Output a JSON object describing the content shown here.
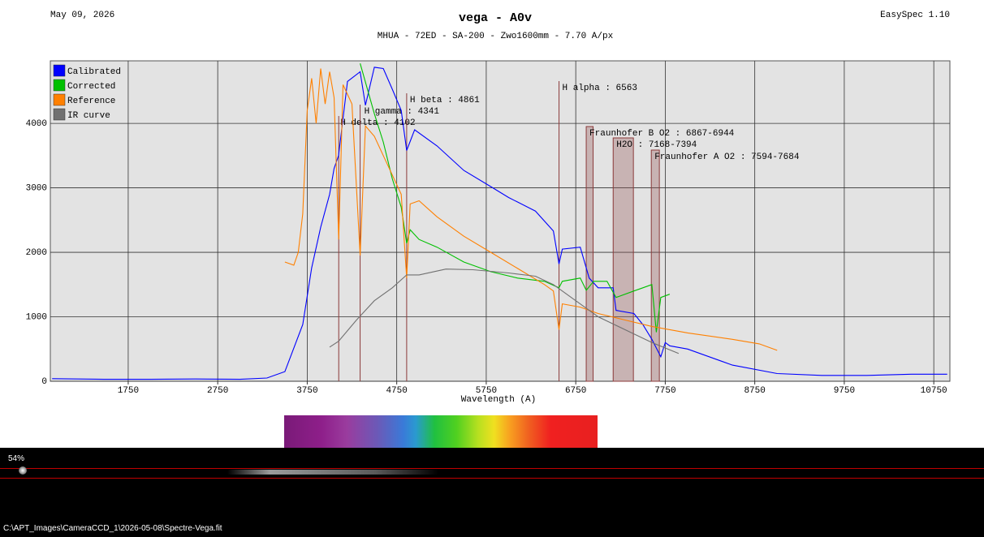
{
  "chart_data": {
    "type": "line",
    "date": "May 09, 2026",
    "title": "vega - A0v",
    "subtitle": "MHUA - 72ED - SA-200 - Zwo1600mm - 7.70 A/px",
    "software": "EasySpec 1.10",
    "x_label": "Wavelength (A)",
    "xlim": [
      880,
      10930
    ],
    "ylim": [
      0,
      4970
    ],
    "xticks": [
      1750,
      2750,
      3750,
      4750,
      5750,
      6750,
      7750,
      8750,
      9750,
      10750
    ],
    "yticks": [
      0,
      1000,
      2000,
      3000,
      4000
    ],
    "grid": true,
    "legend": "top-left",
    "series": [
      {
        "name": "Calibrated",
        "color": "#0000ff",
        "x": [
          900,
          1500,
          2000,
          2500,
          3000,
          3300,
          3500,
          3700,
          3800,
          3900,
          4000,
          4050,
          4100,
          4200,
          4341,
          4400,
          4500,
          4600,
          4700,
          4800,
          4861,
          4950,
          5200,
          5500,
          5800,
          6000,
          6300,
          6500,
          6563,
          6600,
          6800,
          6900,
          7000,
          7168,
          7200,
          7400,
          7500,
          7600,
          7700,
          7750,
          7800,
          8000,
          8500,
          9000,
          9500,
          10000,
          10500,
          10900
        ],
        "values": [
          40,
          30,
          30,
          35,
          30,
          50,
          150,
          880,
          1760,
          2390,
          2900,
          3300,
          3500,
          4650,
          4800,
          4280,
          4870,
          4850,
          4530,
          4200,
          3580,
          3900,
          3650,
          3270,
          3020,
          2850,
          2640,
          2330,
          1820,
          2050,
          2080,
          1600,
          1450,
          1450,
          1100,
          1050,
          880,
          650,
          380,
          600,
          550,
          500,
          250,
          120,
          90,
          90,
          110,
          110
        ]
      },
      {
        "name": "Corrected",
        "color": "#00c000",
        "x": [
          4341,
          4500,
          4600,
          4700,
          4800,
          4861,
          4900,
          5000,
          5200,
          5500,
          5800,
          6100,
          6400,
          6563,
          6600,
          6800,
          6867,
          6950,
          7100,
          7200,
          7400,
          7500,
          7600,
          7650,
          7700,
          7800
        ],
        "values": [
          4930,
          4150,
          3710,
          3140,
          2700,
          2140,
          2350,
          2200,
          2080,
          1850,
          1700,
          1600,
          1550,
          1450,
          1550,
          1600,
          1410,
          1550,
          1550,
          1300,
          1400,
          1450,
          1500,
          760,
          1300,
          1350
        ]
      },
      {
        "name": "Reference",
        "color": "#ff8000",
        "x": [
          3500,
          3600,
          3650,
          3700,
          3750,
          3800,
          3850,
          3900,
          3950,
          4000,
          4050,
          4102,
          4150,
          4250,
          4341,
          4400,
          4500,
          4600,
          4700,
          4800,
          4861,
          4900,
          5000,
          5200,
          5500,
          5800,
          6100,
          6400,
          6500,
          6563,
          6600,
          6800,
          7000,
          7300,
          7600,
          8000,
          8500,
          8800,
          9000
        ],
        "values": [
          1850,
          1800,
          2000,
          2600,
          4200,
          4700,
          4000,
          4850,
          4300,
          4800,
          4400,
          2200,
          4600,
          4300,
          1950,
          3960,
          3800,
          3500,
          3200,
          2900,
          1600,
          2750,
          2800,
          2550,
          2250,
          2000,
          1750,
          1500,
          1400,
          800,
          1200,
          1150,
          1050,
          950,
          850,
          750,
          650,
          580,
          480
        ]
      },
      {
        "name": "IR curve",
        "color": "#707070",
        "x": [
          4000,
          4100,
          4300,
          4500,
          4700,
          4861,
          5000,
          5300,
          5600,
          6000,
          6300,
          6500,
          6700,
          7000,
          7300,
          7600,
          7900
        ],
        "values": [
          530,
          620,
          950,
          1250,
          1450,
          1650,
          1650,
          1740,
          1730,
          1680,
          1630,
          1500,
          1300,
          1000,
          800,
          600,
          430
        ]
      }
    ],
    "annotations": [
      {
        "label": "H delta : 4102",
        "x": 4102
      },
      {
        "label": "H gamma : 4341",
        "x": 4341
      },
      {
        "label": "H beta : 4861",
        "x": 4861
      },
      {
        "label": "H alpha : 6563",
        "x": 6563
      },
      {
        "label": "Fraunhofer B O2 : 6867-6944",
        "x": [
          6867,
          6944
        ]
      },
      {
        "label": "H2O : 7168-7394",
        "x": [
          7168,
          7394
        ]
      },
      {
        "label": "Fraunhofer A O2 : 7594-7684",
        "x": [
          7594,
          7684
        ]
      }
    ]
  },
  "image_panel": {
    "zoom": "54%",
    "file_path": "C:\\APT_Images\\CameraCCD_1\\2026-05-08\\Spectre-Vega.fit"
  }
}
